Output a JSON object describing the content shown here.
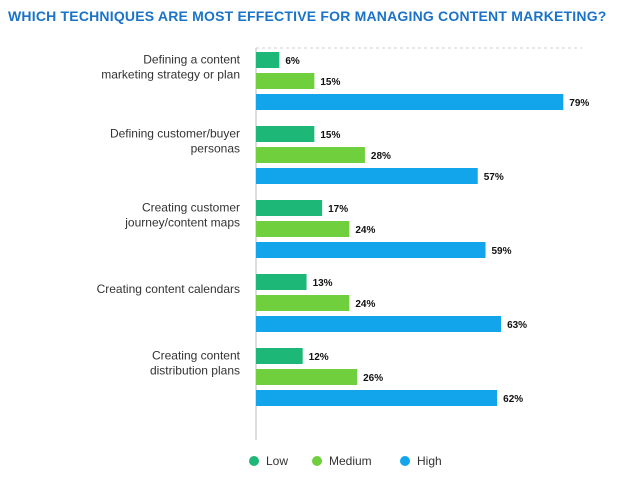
{
  "chart_data": {
    "type": "bar",
    "orientation": "horizontal",
    "title": "WHICH TECHNIQUES ARE MOST EFFECTIVE FOR MANAGING CONTENT MARKETING?",
    "categories": [
      [
        "Defining a content",
        "marketing strategy or plan"
      ],
      [
        "Defining customer/buyer",
        "personas"
      ],
      [
        "Creating customer",
        "journey/content maps"
      ],
      [
        "Creating content calendars"
      ],
      [
        "Creating content",
        "distribution plans"
      ]
    ],
    "series": [
      {
        "name": "Low",
        "color": "#1db877",
        "values": [
          6,
          15,
          17,
          13,
          12
        ]
      },
      {
        "name": "Medium",
        "color": "#6fcf3c",
        "values": [
          15,
          28,
          24,
          24,
          26
        ]
      },
      {
        "name": "High",
        "color": "#12a5ec",
        "values": [
          79,
          57,
          59,
          63,
          62
        ]
      }
    ],
    "value_suffix": "%",
    "xlim": [
      0,
      100
    ],
    "legend_position": "bottom",
    "grid": false
  }
}
